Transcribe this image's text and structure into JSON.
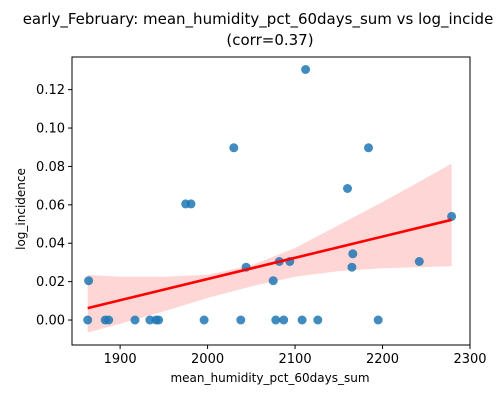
{
  "chart_data": {
    "type": "scatter",
    "title": "early_February: mean_humidity_pct_60days_sum vs log_incide",
    "subtitle": "(corr=0.37)",
    "xlabel": "mean_humidity_pct_60days_sum",
    "ylabel": "log_incidence",
    "xlim": [
      1845,
      2300
    ],
    "ylim": [
      -0.013,
      0.137
    ],
    "xticks": [
      1900,
      2000,
      2100,
      2200,
      2300
    ],
    "xtick_labels": [
      "1900",
      "2000",
      "2100",
      "2200",
      "2300"
    ],
    "yticks": [
      0.0,
      0.02,
      0.04,
      0.06,
      0.08,
      0.1,
      0.12
    ],
    "ytick_labels": [
      "0.00",
      "0.02",
      "0.04",
      "0.06",
      "0.08",
      "0.10",
      "0.12"
    ],
    "grid": false,
    "legend": "none",
    "points": [
      {
        "x": 1863,
        "y": 0.0
      },
      {
        "x": 1864,
        "y": 0.0205
      },
      {
        "x": 1883,
        "y": 0.0
      },
      {
        "x": 1887,
        "y": 0.0
      },
      {
        "x": 1917,
        "y": 0.0
      },
      {
        "x": 1934,
        "y": 0.0
      },
      {
        "x": 1941,
        "y": 0.0
      },
      {
        "x": 1944,
        "y": 0.0
      },
      {
        "x": 1975,
        "y": 0.0605
      },
      {
        "x": 1981,
        "y": 0.0605
      },
      {
        "x": 1996,
        "y": 0.0
      },
      {
        "x": 2030,
        "y": 0.0897
      },
      {
        "x": 2038,
        "y": 0.0
      },
      {
        "x": 2044,
        "y": 0.0275
      },
      {
        "x": 2075,
        "y": 0.0205
      },
      {
        "x": 2078,
        "y": 0.0
      },
      {
        "x": 2082,
        "y": 0.0305
      },
      {
        "x": 2087,
        "y": 0.0
      },
      {
        "x": 2094,
        "y": 0.0305
      },
      {
        "x": 2108,
        "y": 0.0
      },
      {
        "x": 2112,
        "y": 0.1305
      },
      {
        "x": 2126,
        "y": 0.0
      },
      {
        "x": 2160,
        "y": 0.0685
      },
      {
        "x": 2165,
        "y": 0.0275
      },
      {
        "x": 2166,
        "y": 0.0345
      },
      {
        "x": 2184,
        "y": 0.0897
      },
      {
        "x": 2195,
        "y": 0.0
      },
      {
        "x": 2242,
        "y": 0.0305
      },
      {
        "x": 2279,
        "y": 0.054
      }
    ],
    "regression_line": {
      "x": [
        1863,
        2279
      ],
      "y": [
        0.0062,
        0.0522
      ]
    },
    "confidence_band": {
      "x": [
        1863,
        1900,
        1950,
        2000,
        2050,
        2100,
        2150,
        2200,
        2240,
        2279
      ],
      "lower": [
        -0.0065,
        -0.002,
        0.0045,
        0.0115,
        0.0175,
        0.0225,
        0.0255,
        0.027,
        0.0275,
        0.028
      ],
      "upper": [
        0.0235,
        0.0225,
        0.0225,
        0.0235,
        0.0285,
        0.0375,
        0.0495,
        0.0615,
        0.0715,
        0.0815
      ]
    },
    "colors": {
      "points": "#1f77b4",
      "line": "#ff0000",
      "band": "#ffcccc",
      "axes": "#000000"
    }
  }
}
